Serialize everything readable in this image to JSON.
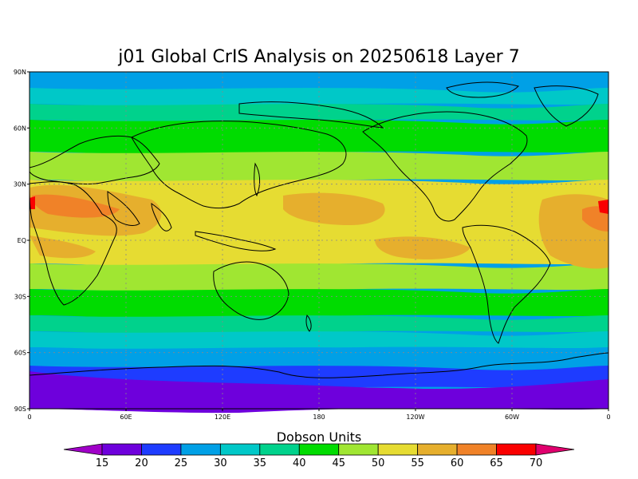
{
  "title": "j01 Global CrIS Analysis on 20250618 Layer 7",
  "lat_ticks": [
    "90N",
    "60N",
    "30N",
    "EQ",
    "30S",
    "60S",
    "90S"
  ],
  "lon_ticks": [
    "0",
    "60E",
    "120E",
    "180",
    "120W",
    "60W",
    "0"
  ],
  "colorbar": {
    "units_label": "Dobson Units",
    "levels": [
      "15",
      "20",
      "25",
      "30",
      "35",
      "40",
      "45",
      "50",
      "55",
      "60",
      "65",
      "70"
    ],
    "colors": [
      "#a000c8",
      "#6e00dc",
      "#1e3cff",
      "#00a0e6",
      "#00c8c8",
      "#00d28c",
      "#00dc00",
      "#a0e632",
      "#e6dc32",
      "#e6af2d",
      "#f08228",
      "#fa0000",
      "#e0006e"
    ]
  },
  "field_colors": {
    "lt15": "#a000c8",
    "15_20": "#6e00dc",
    "20_25": "#1e3cff",
    "25_30": "#00a0e6",
    "30_35": "#00c8c8",
    "35_40": "#00d28c",
    "40_45": "#00dc00",
    "45_50": "#a0e632",
    "50_55": "#e6dc32",
    "55_60": "#e6af2d",
    "60_65": "#f08228",
    "65_70": "#fa0000"
  }
}
